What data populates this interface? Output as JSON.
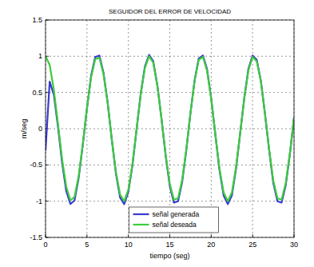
{
  "chart_data": {
    "type": "line",
    "title": "SEGUIDOR DEL ERROR DE VELOCIDAD",
    "x_label": "tiempo (seg)",
    "y_label": "m/seg",
    "x": [
      0,
      0.5,
      1,
      1.5,
      2,
      2.5,
      3,
      3.5,
      4,
      4.5,
      5,
      5.5,
      6,
      6.5,
      7,
      7.5,
      8,
      8.5,
      9,
      9.5,
      10,
      10.5,
      11,
      11.5,
      12,
      12.5,
      13,
      13.5,
      14,
      14.5,
      15,
      15.5,
      16,
      16.5,
      17,
      17.5,
      18,
      18.5,
      19,
      19.5,
      20,
      20.5,
      21,
      21.5,
      22,
      22.5,
      23,
      23.5,
      24,
      24.5,
      25,
      25.5,
      26,
      26.5,
      27,
      27.5,
      28,
      28.5,
      29,
      29.5,
      30
    ],
    "series": [
      {
        "name": "señal generada",
        "color": "#3a3ad0",
        "values": [
          -0.3,
          0.65,
          0.47,
          0.03,
          -0.47,
          -0.86,
          -1.04,
          -0.99,
          -0.68,
          -0.22,
          0.28,
          0.73,
          0.99,
          1.01,
          0.77,
          0.36,
          -0.15,
          -0.62,
          -0.95,
          -1.04,
          -0.87,
          -0.5,
          0.0,
          0.49,
          0.86,
          1.02,
          0.93,
          0.6,
          0.14,
          -0.37,
          -0.79,
          -1.02,
          -1.0,
          -0.73,
          -0.29,
          0.22,
          0.67,
          0.97,
          1.01,
          0.82,
          0.42,
          -0.08,
          -0.57,
          -0.92,
          -1.04,
          -0.92,
          -0.55,
          -0.06,
          0.43,
          0.83,
          1.01,
          0.95,
          0.66,
          0.2,
          -0.3,
          -0.75,
          -1.0,
          -1.02,
          -0.78,
          -0.35,
          0.15
        ]
      },
      {
        "name": "señal deseada",
        "color": "#3ccc3c",
        "values": [
          1.0,
          0.88,
          0.54,
          0.07,
          -0.42,
          -0.8,
          -0.99,
          -0.94,
          -0.65,
          -0.21,
          0.28,
          0.71,
          0.96,
          0.98,
          0.75,
          0.35,
          -0.15,
          -0.6,
          -0.91,
          -1.0,
          -0.84,
          -0.48,
          0.0,
          0.48,
          0.84,
          1.0,
          0.91,
          0.59,
          0.14,
          -0.36,
          -0.76,
          -0.98,
          -0.96,
          -0.7,
          -0.28,
          0.22,
          0.66,
          0.95,
          0.99,
          0.8,
          0.41,
          -0.08,
          -0.55,
          -0.88,
          -1.0,
          -0.88,
          -0.53,
          -0.06,
          0.42,
          0.81,
          0.99,
          0.93,
          0.65,
          0.2,
          -0.29,
          -0.72,
          -0.96,
          -0.98,
          -0.75,
          -0.34,
          0.15
        ]
      }
    ],
    "xlim": [
      0,
      30
    ],
    "ylim": [
      -1.5,
      1.5
    ],
    "xticks": [
      0,
      5,
      10,
      15,
      20,
      25,
      30
    ],
    "yticks": [
      -1.5,
      -1,
      -0.5,
      0,
      0.5,
      1,
      1.5
    ],
    "grid": true,
    "legend": "bottom"
  }
}
